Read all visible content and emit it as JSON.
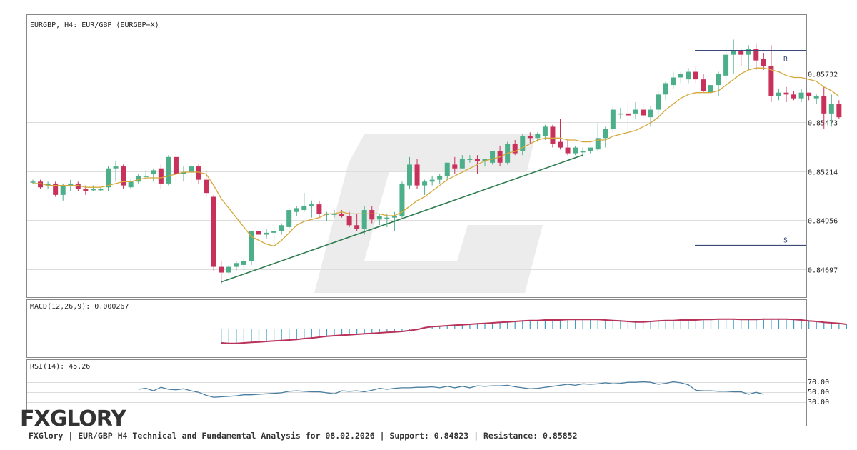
{
  "price_pane": {
    "title": "EURGBP, H4: EUR/GBP (EURGBP=X)",
    "ticks": [
      "0.85732",
      "0.85473",
      "0.85214",
      "0.84956",
      "0.84697"
    ],
    "resistance_label": "R",
    "support_label": "S"
  },
  "macd_pane": {
    "title": "MACD(12,26,9): 0.000267"
  },
  "rsi_pane": {
    "title": "RSI(14): 45.26",
    "ticks": [
      "70.00",
      "50.00",
      "30.00"
    ]
  },
  "logo": {
    "text": "FXGLORY"
  },
  "footer": {
    "text": "FXGlory | EUR/GBP H4 Technical and Fundamental Analysis for 08.02.2026 | Support: 0.84823 | Resistance: 0.85852"
  },
  "colors": {
    "bull": "#4caf8a",
    "bear": "#c8325a",
    "ma": "#d4a83a",
    "trend": "#2e7d4f",
    "sr": "#3b4a7a",
    "macd_hist": "#3a9fbf",
    "macd_line": "#b8325a",
    "rsi": "#4a7ea0",
    "watermark": "#ececec"
  },
  "chart_data": [
    {
      "type": "candlestick",
      "title": "EURGBP, H4: EUR/GBP (EURGBP=X)",
      "ylim": [
        0.8455,
        0.8604
      ],
      "yticks": [
        0.85732,
        0.85473,
        0.85214,
        0.84956,
        0.84697
      ],
      "resistance": 0.85852,
      "support": 0.84823,
      "candles": [
        [
          0.8516,
          0.8517,
          0.8515,
          0.8516
        ],
        [
          0.8516,
          0.8517,
          0.8512,
          0.8513
        ],
        [
          0.8514,
          0.8516,
          0.8512,
          0.8515
        ],
        [
          0.8515,
          0.8516,
          0.8508,
          0.8509
        ],
        [
          0.8509,
          0.8515,
          0.8506,
          0.8514
        ],
        [
          0.8514,
          0.8517,
          0.8511,
          0.8515
        ],
        [
          0.8515,
          0.8516,
          0.8511,
          0.8512
        ],
        [
          0.8512,
          0.8514,
          0.8509,
          0.8511
        ],
        [
          0.8512,
          0.8514,
          0.8511,
          0.8512
        ],
        [
          0.8512,
          0.8513,
          0.8511,
          0.8512
        ],
        [
          0.8513,
          0.8524,
          0.8511,
          0.8523
        ],
        [
          0.8523,
          0.8527,
          0.8516,
          0.8524
        ],
        [
          0.8524,
          0.8525,
          0.8512,
          0.8514
        ],
        [
          0.8513,
          0.8517,
          0.8512,
          0.8516
        ],
        [
          0.8516,
          0.852,
          0.8515,
          0.8519
        ],
        [
          0.8519,
          0.8522,
          0.8518,
          0.8519
        ],
        [
          0.852,
          0.8523,
          0.8516,
          0.8522
        ],
        [
          0.8523,
          0.8525,
          0.8512,
          0.8515
        ],
        [
          0.8515,
          0.853,
          0.8514,
          0.8529
        ],
        [
          0.8529,
          0.8532,
          0.8516,
          0.852
        ],
        [
          0.852,
          0.8524,
          0.8516,
          0.8521
        ],
        [
          0.8521,
          0.8525,
          0.8515,
          0.8524
        ],
        [
          0.8524,
          0.8525,
          0.8515,
          0.8517
        ],
        [
          0.8517,
          0.8522,
          0.8508,
          0.851
        ],
        [
          0.8508,
          0.8509,
          0.8469,
          0.8471
        ],
        [
          0.8471,
          0.8474,
          0.8462,
          0.8468
        ],
        [
          0.8468,
          0.8472,
          0.8467,
          0.8471
        ],
        [
          0.8471,
          0.8474,
          0.8469,
          0.8473
        ],
        [
          0.8472,
          0.8476,
          0.8468,
          0.8474
        ],
        [
          0.8474,
          0.849,
          0.8472,
          0.849
        ],
        [
          0.849,
          0.8491,
          0.8486,
          0.8488
        ],
        [
          0.8488,
          0.8491,
          0.8486,
          0.8489
        ],
        [
          0.8489,
          0.8492,
          0.8483,
          0.849
        ],
        [
          0.849,
          0.8494,
          0.8488,
          0.8493
        ],
        [
          0.8492,
          0.8502,
          0.8491,
          0.8501
        ],
        [
          0.85,
          0.8503,
          0.8498,
          0.8502
        ],
        [
          0.8501,
          0.851,
          0.85,
          0.8503
        ],
        [
          0.8503,
          0.8506,
          0.8497,
          0.8504
        ],
        [
          0.8504,
          0.8506,
          0.8497,
          0.8499
        ],
        [
          0.8499,
          0.85,
          0.8495,
          0.8499
        ],
        [
          0.8499,
          0.8501,
          0.8497,
          0.8499
        ],
        [
          0.8499,
          0.8501,
          0.8497,
          0.8498
        ],
        [
          0.8498,
          0.85,
          0.8492,
          0.8493
        ],
        [
          0.8493,
          0.8499,
          0.849,
          0.8491
        ],
        [
          0.8491,
          0.8503,
          0.8488,
          0.8501
        ],
        [
          0.8501,
          0.8503,
          0.8494,
          0.8496
        ],
        [
          0.8496,
          0.8499,
          0.8493,
          0.8498
        ],
        [
          0.8497,
          0.8499,
          0.8492,
          0.8497
        ],
        [
          0.8497,
          0.85,
          0.849,
          0.8498
        ],
        [
          0.8498,
          0.8516,
          0.8497,
          0.8515
        ],
        [
          0.8514,
          0.8529,
          0.8512,
          0.8525
        ],
        [
          0.8525,
          0.8528,
          0.8512,
          0.8514
        ],
        [
          0.8514,
          0.8517,
          0.8509,
          0.8516
        ],
        [
          0.8516,
          0.8519,
          0.8514,
          0.8517
        ],
        [
          0.8517,
          0.852,
          0.8515,
          0.8519
        ],
        [
          0.8519,
          0.8526,
          0.8517,
          0.8526
        ],
        [
          0.8525,
          0.8529,
          0.852,
          0.8523
        ],
        [
          0.8523,
          0.853,
          0.8523,
          0.8528
        ],
        [
          0.8528,
          0.853,
          0.8526,
          0.8528
        ],
        [
          0.8528,
          0.853,
          0.852,
          0.8527
        ],
        [
          0.8527,
          0.8528,
          0.8524,
          0.8528
        ],
        [
          0.8526,
          0.8532,
          0.8525,
          0.8532
        ],
        [
          0.8532,
          0.8535,
          0.8524,
          0.8526
        ],
        [
          0.8526,
          0.8537,
          0.8525,
          0.8536
        ],
        [
          0.8536,
          0.8538,
          0.853,
          0.8531
        ],
        [
          0.8532,
          0.8541,
          0.853,
          0.854
        ],
        [
          0.854,
          0.8542,
          0.8536,
          0.8539
        ],
        [
          0.8539,
          0.8542,
          0.8537,
          0.8541
        ],
        [
          0.854,
          0.8546,
          0.8538,
          0.8545
        ],
        [
          0.8545,
          0.8546,
          0.8534,
          0.8536
        ],
        [
          0.8537,
          0.8549,
          0.8533,
          0.8534
        ],
        [
          0.8534,
          0.8538,
          0.853,
          0.8531
        ],
        [
          0.8531,
          0.8535,
          0.853,
          0.8534
        ],
        [
          0.8532,
          0.8534,
          0.8529,
          0.8532
        ],
        [
          0.8532,
          0.8534,
          0.8531,
          0.8534
        ],
        [
          0.8533,
          0.8547,
          0.8532,
          0.8539
        ],
        [
          0.8539,
          0.8545,
          0.8534,
          0.8544
        ],
        [
          0.8544,
          0.8556,
          0.8542,
          0.8554
        ],
        [
          0.8552,
          0.8555,
          0.8549,
          0.8552
        ],
        [
          0.8552,
          0.8558,
          0.8541,
          0.8551
        ],
        [
          0.8552,
          0.8558,
          0.8549,
          0.8554
        ],
        [
          0.8554,
          0.8557,
          0.8549,
          0.8551
        ],
        [
          0.855,
          0.8556,
          0.8545,
          0.8554
        ],
        [
          0.8554,
          0.8564,
          0.8549,
          0.8562
        ],
        [
          0.8562,
          0.8569,
          0.8559,
          0.8568
        ],
        [
          0.8567,
          0.8574,
          0.8565,
          0.8571
        ],
        [
          0.8571,
          0.8574,
          0.8568,
          0.8573
        ],
        [
          0.857,
          0.8576,
          0.8568,
          0.8574
        ],
        [
          0.8574,
          0.8577,
          0.8568,
          0.857
        ],
        [
          0.857,
          0.8573,
          0.8563,
          0.8564
        ],
        [
          0.8563,
          0.8568,
          0.8561,
          0.8567
        ],
        [
          0.8567,
          0.8574,
          0.8561,
          0.8573
        ],
        [
          0.8572,
          0.8587,
          0.8566,
          0.8583
        ],
        [
          0.8583,
          0.8591,
          0.8573,
          0.8585
        ],
        [
          0.8585,
          0.8586,
          0.8577,
          0.8583
        ],
        [
          0.8583,
          0.8588,
          0.8575,
          0.8586
        ],
        [
          0.8586,
          0.8589,
          0.8575,
          0.858
        ],
        [
          0.8581,
          0.8584,
          0.8575,
          0.8577
        ],
        [
          0.8577,
          0.8588,
          0.8558,
          0.8561
        ],
        [
          0.8561,
          0.8565,
          0.8559,
          0.8563
        ],
        [
          0.8563,
          0.8566,
          0.8558,
          0.8562
        ],
        [
          0.8562,
          0.8564,
          0.8559,
          0.856
        ],
        [
          0.856,
          0.8565,
          0.8558,
          0.8563
        ],
        [
          0.8563,
          0.8563,
          0.8559,
          0.8561
        ],
        [
          0.856,
          0.8562,
          0.8557,
          0.8561
        ],
        [
          0.8561,
          0.8566,
          0.8544,
          0.8552
        ],
        [
          0.8552,
          0.8562,
          0.8545,
          0.8557
        ],
        [
          0.8557,
          0.8559,
          0.8549,
          0.855
        ]
      ],
      "moving_average": [
        0.8515,
        0.8515,
        0.8514,
        0.8514,
        0.8514,
        0.8514,
        0.8514,
        0.8513,
        0.8513,
        0.8513,
        0.8514,
        0.8515,
        0.8516,
        0.8516,
        0.8517,
        0.8518,
        0.8518,
        0.8518,
        0.8519,
        0.852,
        0.8521,
        0.8521,
        0.8521,
        0.852,
        0.8514,
        0.8507,
        0.8502,
        0.8497,
        0.8492,
        0.8487,
        0.8485,
        0.8483,
        0.8482,
        0.8485,
        0.8489,
        0.8493,
        0.8495,
        0.8496,
        0.8497,
        0.8499,
        0.8499,
        0.85,
        0.8499,
        0.8499,
        0.8499,
        0.8499,
        0.8499,
        0.8498,
        0.8498,
        0.85,
        0.8503,
        0.8506,
        0.8508,
        0.8511,
        0.8514,
        0.8517,
        0.8519,
        0.8521,
        0.8523,
        0.8525,
        0.8527,
        0.8528,
        0.8529,
        0.8531,
        0.8532,
        0.8534,
        0.8536,
        0.8538,
        0.8539,
        0.8539,
        0.8539,
        0.8538,
        0.8538,
        0.8537,
        0.8537,
        0.8538,
        0.8538,
        0.854,
        0.8541,
        0.8542,
        0.8543,
        0.8545,
        0.8547,
        0.855,
        0.8554,
        0.8557,
        0.856,
        0.8562,
        0.8563,
        0.8563,
        0.8563,
        0.8564,
        0.8567,
        0.857,
        0.8573,
        0.8575,
        0.8576,
        0.8576,
        0.8575,
        0.8574,
        0.8572,
        0.8571,
        0.8571,
        0.857,
        0.8569,
        0.8566,
        0.8564,
        0.8561
      ],
      "trendline": [
        [
          25,
          0.8463
        ],
        [
          73,
          0.853
        ]
      ]
    },
    {
      "type": "bar",
      "title": "MACD(12,26,9): 0.000267",
      "ylim": [
        -0.0006,
        0.0006
      ],
      "start_index": 25,
      "histogram": [
        -0.0003,
        -0.00031,
        -0.00031,
        -0.0003,
        -0.00029,
        -0.00028,
        -0.00027,
        -0.00026,
        -0.00025,
        -0.00024,
        -0.00023,
        -0.00021,
        -0.0002,
        -0.00018,
        -0.00016,
        -0.00015,
        -0.00014,
        -0.00013,
        -0.00012,
        -0.00011,
        -0.0001,
        -9e-05,
        -8e-05,
        -7e-05,
        -6e-05,
        -4e-05,
        -2e-05,
        2e-05,
        4e-05,
        5e-05,
        6e-05,
        7e-05,
        8e-05,
        9e-05,
        0.0001,
        0.00011,
        0.00012,
        0.00013,
        0.00014,
        0.00015,
        0.00016,
        0.00017,
        0.00017,
        0.00018,
        0.00018,
        0.00018,
        0.00019,
        0.00019,
        0.00019,
        0.00019,
        0.00019,
        0.00018,
        0.00017,
        0.00016,
        0.00015,
        0.00014,
        0.00014,
        0.00015,
        0.00016,
        0.00017,
        0.00017,
        0.00018,
        0.00018,
        0.00018,
        0.00019,
        0.00019,
        0.0002,
        0.0002,
        0.0002,
        0.00019,
        0.00019,
        0.00019,
        0.0002,
        0.0002,
        0.0002,
        0.0002,
        0.00019,
        0.00018,
        0.00016,
        0.00015,
        0.00013,
        0.00012,
        0.00011,
        9e-05
      ],
      "signal": [
        -0.0003,
        -0.00031,
        -0.00031,
        -0.0003,
        -0.00029,
        -0.00028,
        -0.00027,
        -0.00026,
        -0.00025,
        -0.00024,
        -0.00023,
        -0.00021,
        -0.0002,
        -0.00018,
        -0.00016,
        -0.00015,
        -0.00014,
        -0.00013,
        -0.00012,
        -0.00011,
        -0.0001,
        -9e-05,
        -8e-05,
        -7e-05,
        -6e-05,
        -4e-05,
        -2e-05,
        2e-05,
        4e-05,
        5e-05,
        6e-05,
        7e-05,
        8e-05,
        9e-05,
        0.0001,
        0.00011,
        0.00012,
        0.00013,
        0.00014,
        0.00015,
        0.00016,
        0.00017,
        0.00017,
        0.00018,
        0.00018,
        0.00018,
        0.00019,
        0.00019,
        0.00019,
        0.00019,
        0.00019,
        0.00018,
        0.00017,
        0.00016,
        0.00015,
        0.00014,
        0.00014,
        0.00015,
        0.00016,
        0.00017,
        0.00017,
        0.00018,
        0.00018,
        0.00018,
        0.00019,
        0.00019,
        0.0002,
        0.0002,
        0.0002,
        0.00019,
        0.00019,
        0.00019,
        0.0002,
        0.0002,
        0.0002,
        0.0002,
        0.00019,
        0.00018,
        0.00016,
        0.00015,
        0.00013,
        0.00012,
        0.00011,
        9e-05
      ]
    },
    {
      "type": "line",
      "title": "RSI(14): 45.26",
      "ylim": [
        0,
        100
      ],
      "yticks": [
        70,
        50,
        30
      ],
      "start_index": 14,
      "values": [
        55,
        57,
        52,
        59,
        55,
        54,
        56,
        52,
        49,
        43,
        39,
        40,
        41,
        42,
        44,
        44,
        45,
        46,
        47,
        48,
        51,
        52,
        51,
        50,
        50,
        48,
        46,
        52,
        51,
        52,
        50,
        53,
        57,
        55,
        57,
        58,
        58,
        59,
        59,
        60,
        58,
        61,
        58,
        61,
        58,
        62,
        61,
        62,
        62,
        63,
        60,
        58,
        56,
        57,
        59,
        61,
        63,
        65,
        63,
        66,
        65,
        66,
        68,
        66,
        67,
        69,
        69,
        70,
        69,
        65,
        67,
        70,
        68,
        64,
        53,
        52,
        52,
        51,
        51,
        50,
        50,
        45,
        49,
        45
      ]
    }
  ]
}
